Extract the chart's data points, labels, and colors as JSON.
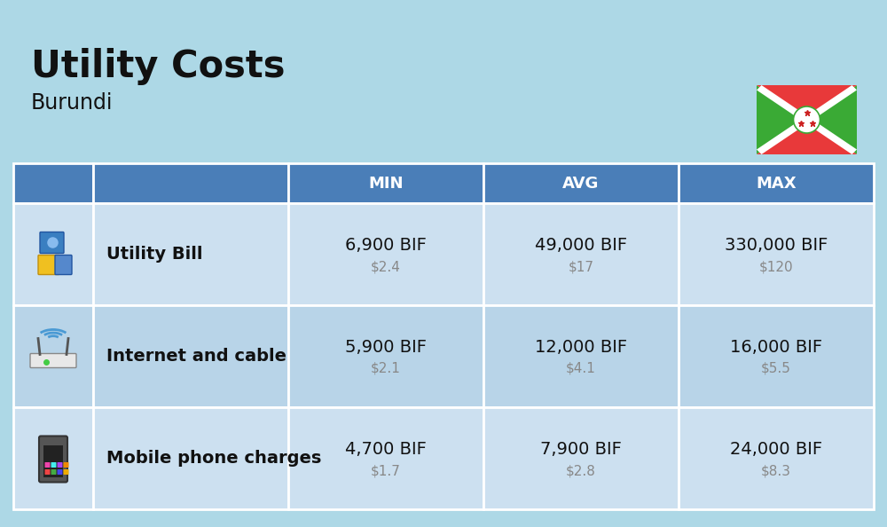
{
  "title": "Utility Costs",
  "subtitle": "Burundi",
  "background_color": "#add8e6",
  "header_bg_color": "#4a7eb8",
  "header_text_color": "#ffffff",
  "row_bg_color_1": "#cce0f0",
  "row_bg_color_2": "#b8d4e8",
  "divider_color": "#ffffff",
  "col_headers": [
    "MIN",
    "AVG",
    "MAX"
  ],
  "rows": [
    {
      "label": "Utility Bill",
      "min_bif": "6,900 BIF",
      "min_usd": "$2.4",
      "avg_bif": "49,000 BIF",
      "avg_usd": "$17",
      "max_bif": "330,000 BIF",
      "max_usd": "$120",
      "icon": "utility"
    },
    {
      "label": "Internet and cable",
      "min_bif": "5,900 BIF",
      "min_usd": "$2.1",
      "avg_bif": "12,000 BIF",
      "avg_usd": "$4.1",
      "max_bif": "16,000 BIF",
      "max_usd": "$5.5",
      "icon": "internet"
    },
    {
      "label": "Mobile phone charges",
      "min_bif": "4,700 BIF",
      "min_usd": "$1.7",
      "avg_bif": "7,900 BIF",
      "avg_usd": "$2.8",
      "max_bif": "24,000 BIF",
      "max_usd": "$8.3",
      "icon": "mobile"
    }
  ],
  "title_fontsize": 30,
  "subtitle_fontsize": 17,
  "header_fontsize": 13,
  "label_fontsize": 14,
  "value_fontsize": 14,
  "usd_fontsize": 11,
  "flag_green": "#3aaa35",
  "flag_red": "#e8393a",
  "flag_white": "#ffffff",
  "flag_star_red": "#cc2020"
}
